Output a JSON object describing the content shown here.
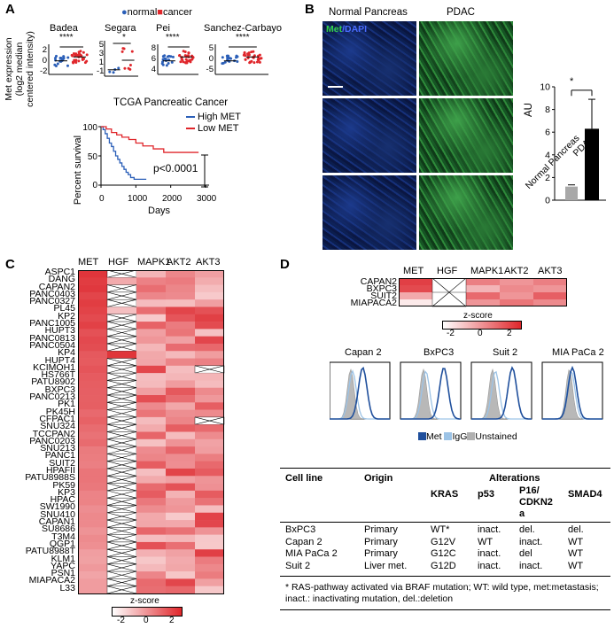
{
  "panels": {
    "A": "A",
    "B": "B",
    "C": "C",
    "D": "D"
  },
  "panelA": {
    "legend": {
      "normal": "normal",
      "cancer": "cancer",
      "normal_color": "#2b5fb8",
      "cancer_color": "#e0262b"
    },
    "ylabel": [
      "Met expression",
      "(log2 median",
      "centered intensity)"
    ],
    "datasets": [
      {
        "name": "Badea",
        "sig": "****",
        "yticks": [
          "2",
          "0",
          "-2"
        ]
      },
      {
        "name": "Segara",
        "sig": "*",
        "yticks": [
          "5",
          "3",
          "1",
          "-1"
        ]
      },
      {
        "name": "Pei",
        "sig": "****",
        "yticks": [
          "8",
          "6",
          "4"
        ]
      },
      {
        "name": "Sanchez-Carbayo",
        "sig": "****",
        "yticks": [
          "5",
          "0",
          "-5"
        ]
      }
    ],
    "km": {
      "title": "TCGA Pancreatic Cancer",
      "legend_high": "High MET",
      "legend_low": "Low MET",
      "high_color": "#2b5fb8",
      "low_color": "#e0262b",
      "ylabel": "Percent survival",
      "xlabel": "Days",
      "yticks": [
        "100",
        "50",
        "0"
      ],
      "xticks": [
        "0",
        "1000",
        "2000",
        "3000"
      ],
      "pvalue": "p<0.0001"
    }
  },
  "panelB": {
    "col1": "Normal Pancreas",
    "col2": "PDAC",
    "stain_met": "Met",
    "stain_dapi": "/DAPI",
    "bar": {
      "ylabel": "AU",
      "yticks": [
        "10",
        "8",
        "6",
        "4",
        "2",
        "0"
      ],
      "categories": [
        "Normal Pancreas",
        "PDAC"
      ],
      "sig": "*"
    }
  },
  "panelC": {
    "columns": [
      "MET",
      "HGF",
      "MAPK1",
      "AKT2",
      "AKT3"
    ],
    "rows": [
      "ASPC1",
      "DANG",
      "CAPAN2",
      "PANC0403",
      "PANC0327",
      "PL45",
      "KP2",
      "PANC1005",
      "HUPT3",
      "PANC0813",
      "PANC0504",
      "KP4",
      "HUPT4",
      "KCIMOH1",
      "HS766T",
      "PATU8902",
      "BXPC3",
      "PANC0213",
      "PK1",
      "PK45H",
      "CFPAC1",
      "SNU324",
      "TCCPAN2",
      "PANC0203",
      "SNU213",
      "PANC1",
      "SUIT2",
      "HPAFII",
      "PATU8988S",
      "PK59",
      "KP3",
      "HPAC",
      "SW1990",
      "SNU410",
      "CAPAN1",
      "SU8686",
      "T3M4",
      "QGP1",
      "PATU8988T",
      "KLM1",
      "YAPC",
      "PSN1",
      "MIAPACA2",
      "L33"
    ],
    "zscore_label": "z-score",
    "zscore_ticks": [
      "-2",
      "0",
      "2"
    ]
  },
  "panelD": {
    "columns": [
      "MET",
      "HGF",
      "MAPK1",
      "AKT2",
      "AKT3"
    ],
    "rows": [
      "CAPAN2",
      "BXPC3",
      "SUIT2",
      "MIAPACA2"
    ],
    "zscore_label": "z-score",
    "zscore_ticks": [
      "-2",
      "0",
      "2"
    ],
    "flow_titles": [
      "Capan 2",
      "BxPC3",
      "Suit 2",
      "MIA PaCa 2"
    ],
    "flow_legend": {
      "met": "Met",
      "igg": "IgG",
      "unstained": "Unstained",
      "met_color": "#1f4f9c",
      "igg_color": "#9cc3e6",
      "unstained_color": "#b0b0b0"
    },
    "table": {
      "headers": {
        "cell_line": "Cell line",
        "origin": "Origin",
        "alterations": "Alterations"
      },
      "subheaders": [
        "KRAS",
        "p53",
        "P16/ CDKN2 a",
        "SMAD4"
      ],
      "rows": [
        {
          "cell": "BxPC3",
          "origin": "Primary",
          "kras": "WT*",
          "p53": "inact.",
          "p16": "del.",
          "smad4": "del."
        },
        {
          "cell": "Capan 2",
          "origin": "Primary",
          "kras": "G12V",
          "p53": "WT",
          "p16": "inact.",
          "smad4": "WT"
        },
        {
          "cell": "MIA PaCa 2",
          "origin": "Primary",
          "kras": "G12C",
          "p53": "inact.",
          "p16": "del",
          "smad4": "WT"
        },
        {
          "cell": "Suit 2",
          "origin": "Liver met.",
          "kras": "G12D",
          "p53": "inact.",
          "p16": "inact.",
          "smad4": "WT"
        }
      ],
      "footnote": "* RAS-pathway activated via BRAF mutation; WT: wild type, met:metastasis; inact.: inactivating mutation, del.:deletion"
    }
  }
}
